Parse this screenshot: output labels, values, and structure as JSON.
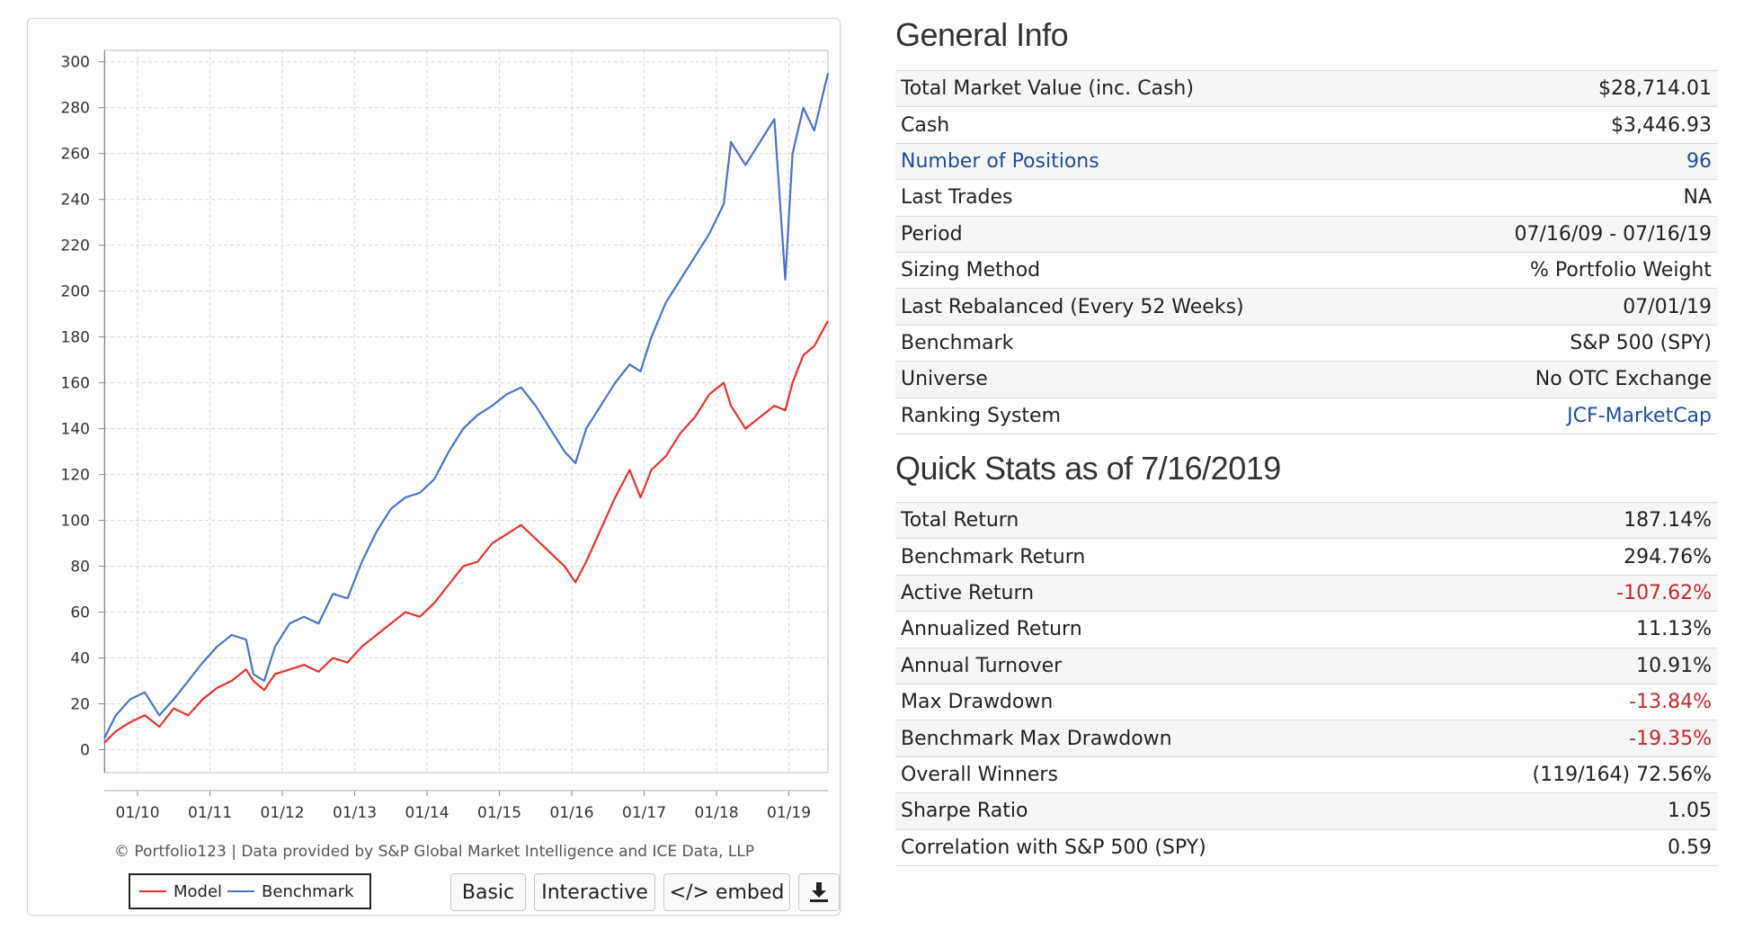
{
  "chart_data": {
    "type": "line",
    "x_tick_labels": [
      "01/10",
      "01/11",
      "01/12",
      "01/13",
      "01/14",
      "01/15",
      "01/16",
      "01/17",
      "01/18",
      "01/19"
    ],
    "ylim": [
      -10,
      305
    ],
    "y_ticks": [
      0,
      20,
      40,
      60,
      80,
      100,
      120,
      140,
      160,
      180,
      200,
      220,
      240,
      260,
      280,
      300
    ],
    "x_range": [
      2009.54,
      2019.54
    ],
    "grid": true,
    "legend_position": "bottom-left",
    "series": [
      {
        "name": "Model",
        "color": "#e8322e",
        "x": [
          2009.54,
          2009.7,
          2009.9,
          2010.1,
          2010.3,
          2010.5,
          2010.7,
          2010.9,
          2011.1,
          2011.3,
          2011.5,
          2011.6,
          2011.75,
          2011.9,
          2012.1,
          2012.3,
          2012.5,
          2012.7,
          2012.9,
          2013.1,
          2013.3,
          2013.5,
          2013.7,
          2013.9,
          2014.1,
          2014.3,
          2014.5,
          2014.7,
          2014.9,
          2015.1,
          2015.3,
          2015.5,
          2015.7,
          2015.9,
          2016.05,
          2016.2,
          2016.4,
          2016.6,
          2016.8,
          2016.95,
          2017.1,
          2017.3,
          2017.5,
          2017.7,
          2017.9,
          2018.1,
          2018.2,
          2018.4,
          2018.6,
          2018.8,
          2018.95,
          2019.05,
          2019.2,
          2019.35,
          2019.54
        ],
        "y": [
          3,
          8,
          12,
          15,
          10,
          18,
          15,
          22,
          27,
          30,
          35,
          30,
          26,
          33,
          35,
          37,
          34,
          40,
          38,
          45,
          50,
          55,
          60,
          58,
          64,
          72,
          80,
          82,
          90,
          94,
          98,
          92,
          86,
          80,
          73,
          82,
          96,
          110,
          122,
          110,
          122,
          128,
          138,
          145,
          155,
          160,
          150,
          140,
          145,
          150,
          148,
          160,
          172,
          176,
          187
        ]
      },
      {
        "name": "Benchmark",
        "color": "#4a72c8",
        "x": [
          2009.54,
          2009.7,
          2009.9,
          2010.1,
          2010.3,
          2010.5,
          2010.7,
          2010.9,
          2011.1,
          2011.3,
          2011.5,
          2011.6,
          2011.75,
          2011.9,
          2012.1,
          2012.3,
          2012.5,
          2012.7,
          2012.9,
          2013.1,
          2013.3,
          2013.5,
          2013.7,
          2013.9,
          2014.1,
          2014.3,
          2014.5,
          2014.7,
          2014.9,
          2015.1,
          2015.3,
          2015.5,
          2015.7,
          2015.9,
          2016.05,
          2016.2,
          2016.4,
          2016.6,
          2016.8,
          2016.95,
          2017.1,
          2017.3,
          2017.5,
          2017.7,
          2017.9,
          2018.1,
          2018.2,
          2018.4,
          2018.6,
          2018.8,
          2018.95,
          2019.05,
          2019.2,
          2019.35,
          2019.54
        ],
        "y": [
          5,
          15,
          22,
          25,
          15,
          22,
          30,
          38,
          45,
          50,
          48,
          33,
          30,
          45,
          55,
          58,
          55,
          68,
          66,
          82,
          95,
          105,
          110,
          112,
          118,
          130,
          140,
          146,
          150,
          155,
          158,
          150,
          140,
          130,
          125,
          140,
          150,
          160,
          168,
          165,
          180,
          195,
          205,
          215,
          225,
          238,
          265,
          255,
          265,
          275,
          205,
          260,
          280,
          270,
          295
        ]
      }
    ]
  },
  "chart_footer": {
    "credit": "© Portfolio123 | Data provided by S&P Global Market Intelligence and ICE Data, LLP",
    "legend": {
      "model_label": "Model",
      "benchmark_label": "Benchmark"
    },
    "buttons": {
      "basic": "Basic",
      "interactive": "Interactive",
      "embed": "</> embed"
    }
  },
  "general_info": {
    "title": "General Info",
    "rows": [
      {
        "label": "Total Market Value (inc. Cash)",
        "value": "$28,714.01"
      },
      {
        "label": "Cash",
        "value": "$3,446.93"
      },
      {
        "label": "Number of Positions",
        "value": "96"
      },
      {
        "label": "Last Trades",
        "value": "NA"
      },
      {
        "label": "Period",
        "value": "07/16/09 - 07/16/19"
      },
      {
        "label": "Sizing Method",
        "value": "% Portfolio Weight"
      },
      {
        "label": "Last Rebalanced (Every 52 Weeks)",
        "value": "07/01/19"
      },
      {
        "label": "Benchmark",
        "value": "S&P 500 (SPY)"
      },
      {
        "label": "Universe",
        "value": "No OTC Exchange"
      },
      {
        "label": "Ranking System",
        "value": "JCF-MarketCap"
      }
    ]
  },
  "quick_stats": {
    "title": "Quick Stats as of 7/16/2019",
    "rows": [
      {
        "label": "Total Return",
        "value": "187.14%"
      },
      {
        "label": "Benchmark Return",
        "value": "294.76%"
      },
      {
        "label": "Active Return",
        "value": "-107.62%"
      },
      {
        "label": "Annualized Return",
        "value": "11.13%"
      },
      {
        "label": "Annual Turnover",
        "value": "10.91%"
      },
      {
        "label": "Max Drawdown",
        "value": "-13.84%"
      },
      {
        "label": "Benchmark Max Drawdown",
        "value": "-19.35%"
      },
      {
        "label": "Overall Winners",
        "value": "(119/164) 72.56%"
      },
      {
        "label": "Sharpe Ratio",
        "value": "1.05"
      },
      {
        "label": "Correlation with S&P 500 (SPY)",
        "value": "0.59"
      }
    ]
  },
  "colors": {
    "link": "#1f4e96",
    "negative": "#c62828",
    "model": "#e8322e",
    "benchmark": "#4a72c8"
  },
  "icons": {
    "download": "download-icon"
  }
}
